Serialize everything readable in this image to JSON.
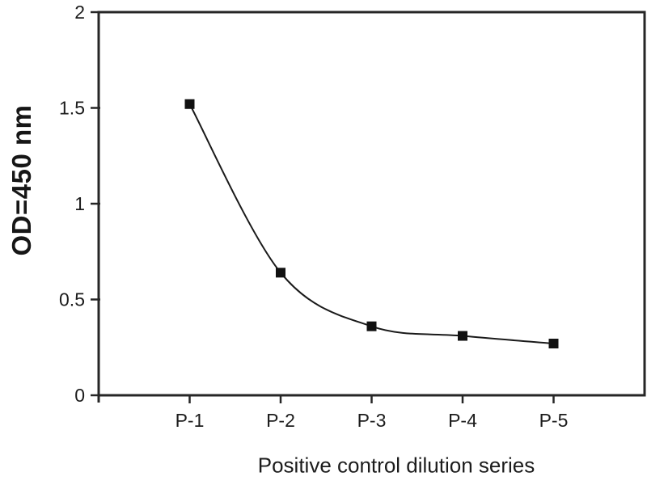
{
  "chart_data": {
    "type": "line",
    "title": "",
    "categories": [
      "P-1",
      "P-2",
      "P-3",
      "P-4",
      "P-5"
    ],
    "series": [
      {
        "name": "Positive control",
        "values": [
          1.52,
          0.64,
          0.36,
          0.31,
          0.27
        ]
      }
    ],
    "xlabel": "Positive control dilution series",
    "ylabel": "OD=450 nm",
    "ylim": [
      0,
      2
    ],
    "yticks": [
      0,
      0.5,
      1,
      1.5,
      2
    ],
    "grid": false,
    "legend_position": "none",
    "marker_shape": "square",
    "colors": {
      "background": "#ffffff",
      "axis": "#262626",
      "line": "#1a1a1a",
      "marker": "#111111",
      "text": "#1c1c1c"
    }
  }
}
